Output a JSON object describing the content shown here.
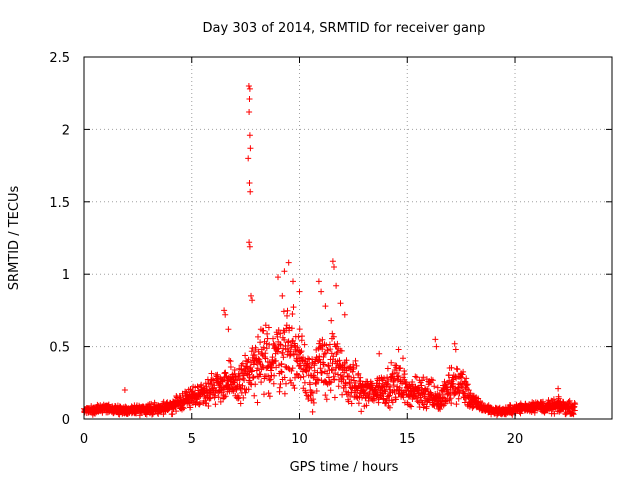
{
  "chart_data": {
    "type": "scatter",
    "title": "Day 303 of 2014, SRMTID for receiver ganp",
    "xlabel": "GPS time / hours",
    "ylabel": "SRMTID / TECUs",
    "xlim": [
      0,
      24.5
    ],
    "ylim": [
      0,
      2.5
    ],
    "xticks": [
      0,
      5,
      10,
      15,
      20
    ],
    "yticks": [
      0,
      0.5,
      1,
      1.5,
      2,
      2.5
    ],
    "xtick_labels": [
      "0",
      "5",
      "10",
      "15",
      "20"
    ],
    "ytick_labels": [
      "0",
      "0.5",
      "1",
      "1.5",
      "2",
      "2.5"
    ],
    "grid": true,
    "marker": "plus",
    "color": "#ff0000",
    "series": [
      {
        "name": "SRMTID",
        "profile_x": [
          0,
          1,
          2,
          3,
          4,
          4.5,
          5,
          5.5,
          6,
          6.5,
          7,
          7.5,
          8,
          8.5,
          9,
          9.5,
          10,
          10.5,
          11,
          11.5,
          12,
          12.5,
          13,
          13.5,
          14,
          14.5,
          15,
          15.5,
          16,
          16.5,
          17,
          17.5,
          18,
          18.5,
          19,
          19.5,
          20,
          20.5,
          21,
          21.5,
          22,
          22.5,
          22.8
        ],
        "profile_center": [
          0.06,
          0.07,
          0.06,
          0.07,
          0.08,
          0.12,
          0.15,
          0.18,
          0.22,
          0.25,
          0.22,
          0.3,
          0.35,
          0.4,
          0.45,
          0.5,
          0.42,
          0.3,
          0.35,
          0.4,
          0.3,
          0.25,
          0.18,
          0.2,
          0.22,
          0.25,
          0.2,
          0.18,
          0.2,
          0.12,
          0.22,
          0.25,
          0.12,
          0.08,
          0.06,
          0.05,
          0.07,
          0.08,
          0.09,
          0.08,
          0.09,
          0.08,
          0.07
        ],
        "profile_spread": [
          0.04,
          0.04,
          0.05,
          0.05,
          0.06,
          0.08,
          0.1,
          0.12,
          0.15,
          0.2,
          0.2,
          0.25,
          0.3,
          0.35,
          0.38,
          0.4,
          0.35,
          0.3,
          0.35,
          0.35,
          0.25,
          0.2,
          0.15,
          0.15,
          0.18,
          0.2,
          0.15,
          0.15,
          0.2,
          0.1,
          0.2,
          0.2,
          0.08,
          0.05,
          0.04,
          0.04,
          0.05,
          0.05,
          0.06,
          0.06,
          0.07,
          0.06,
          0.05
        ],
        "outliers": [
          {
            "x": 7.65,
            "y": 2.3
          },
          {
            "x": 7.7,
            "y": 2.28
          },
          {
            "x": 7.68,
            "y": 2.21
          },
          {
            "x": 7.66,
            "y": 2.12
          },
          {
            "x": 7.7,
            "y": 1.96
          },
          {
            "x": 7.72,
            "y": 1.87
          },
          {
            "x": 7.62,
            "y": 1.8
          },
          {
            "x": 7.68,
            "y": 1.63
          },
          {
            "x": 7.71,
            "y": 1.57
          },
          {
            "x": 7.66,
            "y": 1.22
          },
          {
            "x": 7.7,
            "y": 1.19
          },
          {
            "x": 7.75,
            "y": 0.85
          },
          {
            "x": 7.8,
            "y": 0.82
          },
          {
            "x": 6.5,
            "y": 0.75
          },
          {
            "x": 6.55,
            "y": 0.72
          },
          {
            "x": 6.7,
            "y": 0.62
          },
          {
            "x": 9.5,
            "y": 1.08
          },
          {
            "x": 9.3,
            "y": 1.02
          },
          {
            "x": 9.0,
            "y": 0.98
          },
          {
            "x": 9.7,
            "y": 0.95
          },
          {
            "x": 10.0,
            "y": 0.88
          },
          {
            "x": 9.2,
            "y": 0.85
          },
          {
            "x": 10.9,
            "y": 0.95
          },
          {
            "x": 11.0,
            "y": 0.88
          },
          {
            "x": 11.55,
            "y": 1.09
          },
          {
            "x": 11.6,
            "y": 1.05
          },
          {
            "x": 11.7,
            "y": 0.92
          },
          {
            "x": 11.9,
            "y": 0.8
          },
          {
            "x": 12.1,
            "y": 0.72
          },
          {
            "x": 11.2,
            "y": 0.78
          },
          {
            "x": 14.6,
            "y": 0.48
          },
          {
            "x": 14.8,
            "y": 0.42
          },
          {
            "x": 16.3,
            "y": 0.55
          },
          {
            "x": 16.35,
            "y": 0.5
          },
          {
            "x": 17.2,
            "y": 0.52
          },
          {
            "x": 17.25,
            "y": 0.48
          },
          {
            "x": 13.7,
            "y": 0.45
          },
          {
            "x": 1.9,
            "y": 0.2
          },
          {
            "x": 22.0,
            "y": 0.21
          }
        ]
      }
    ]
  }
}
